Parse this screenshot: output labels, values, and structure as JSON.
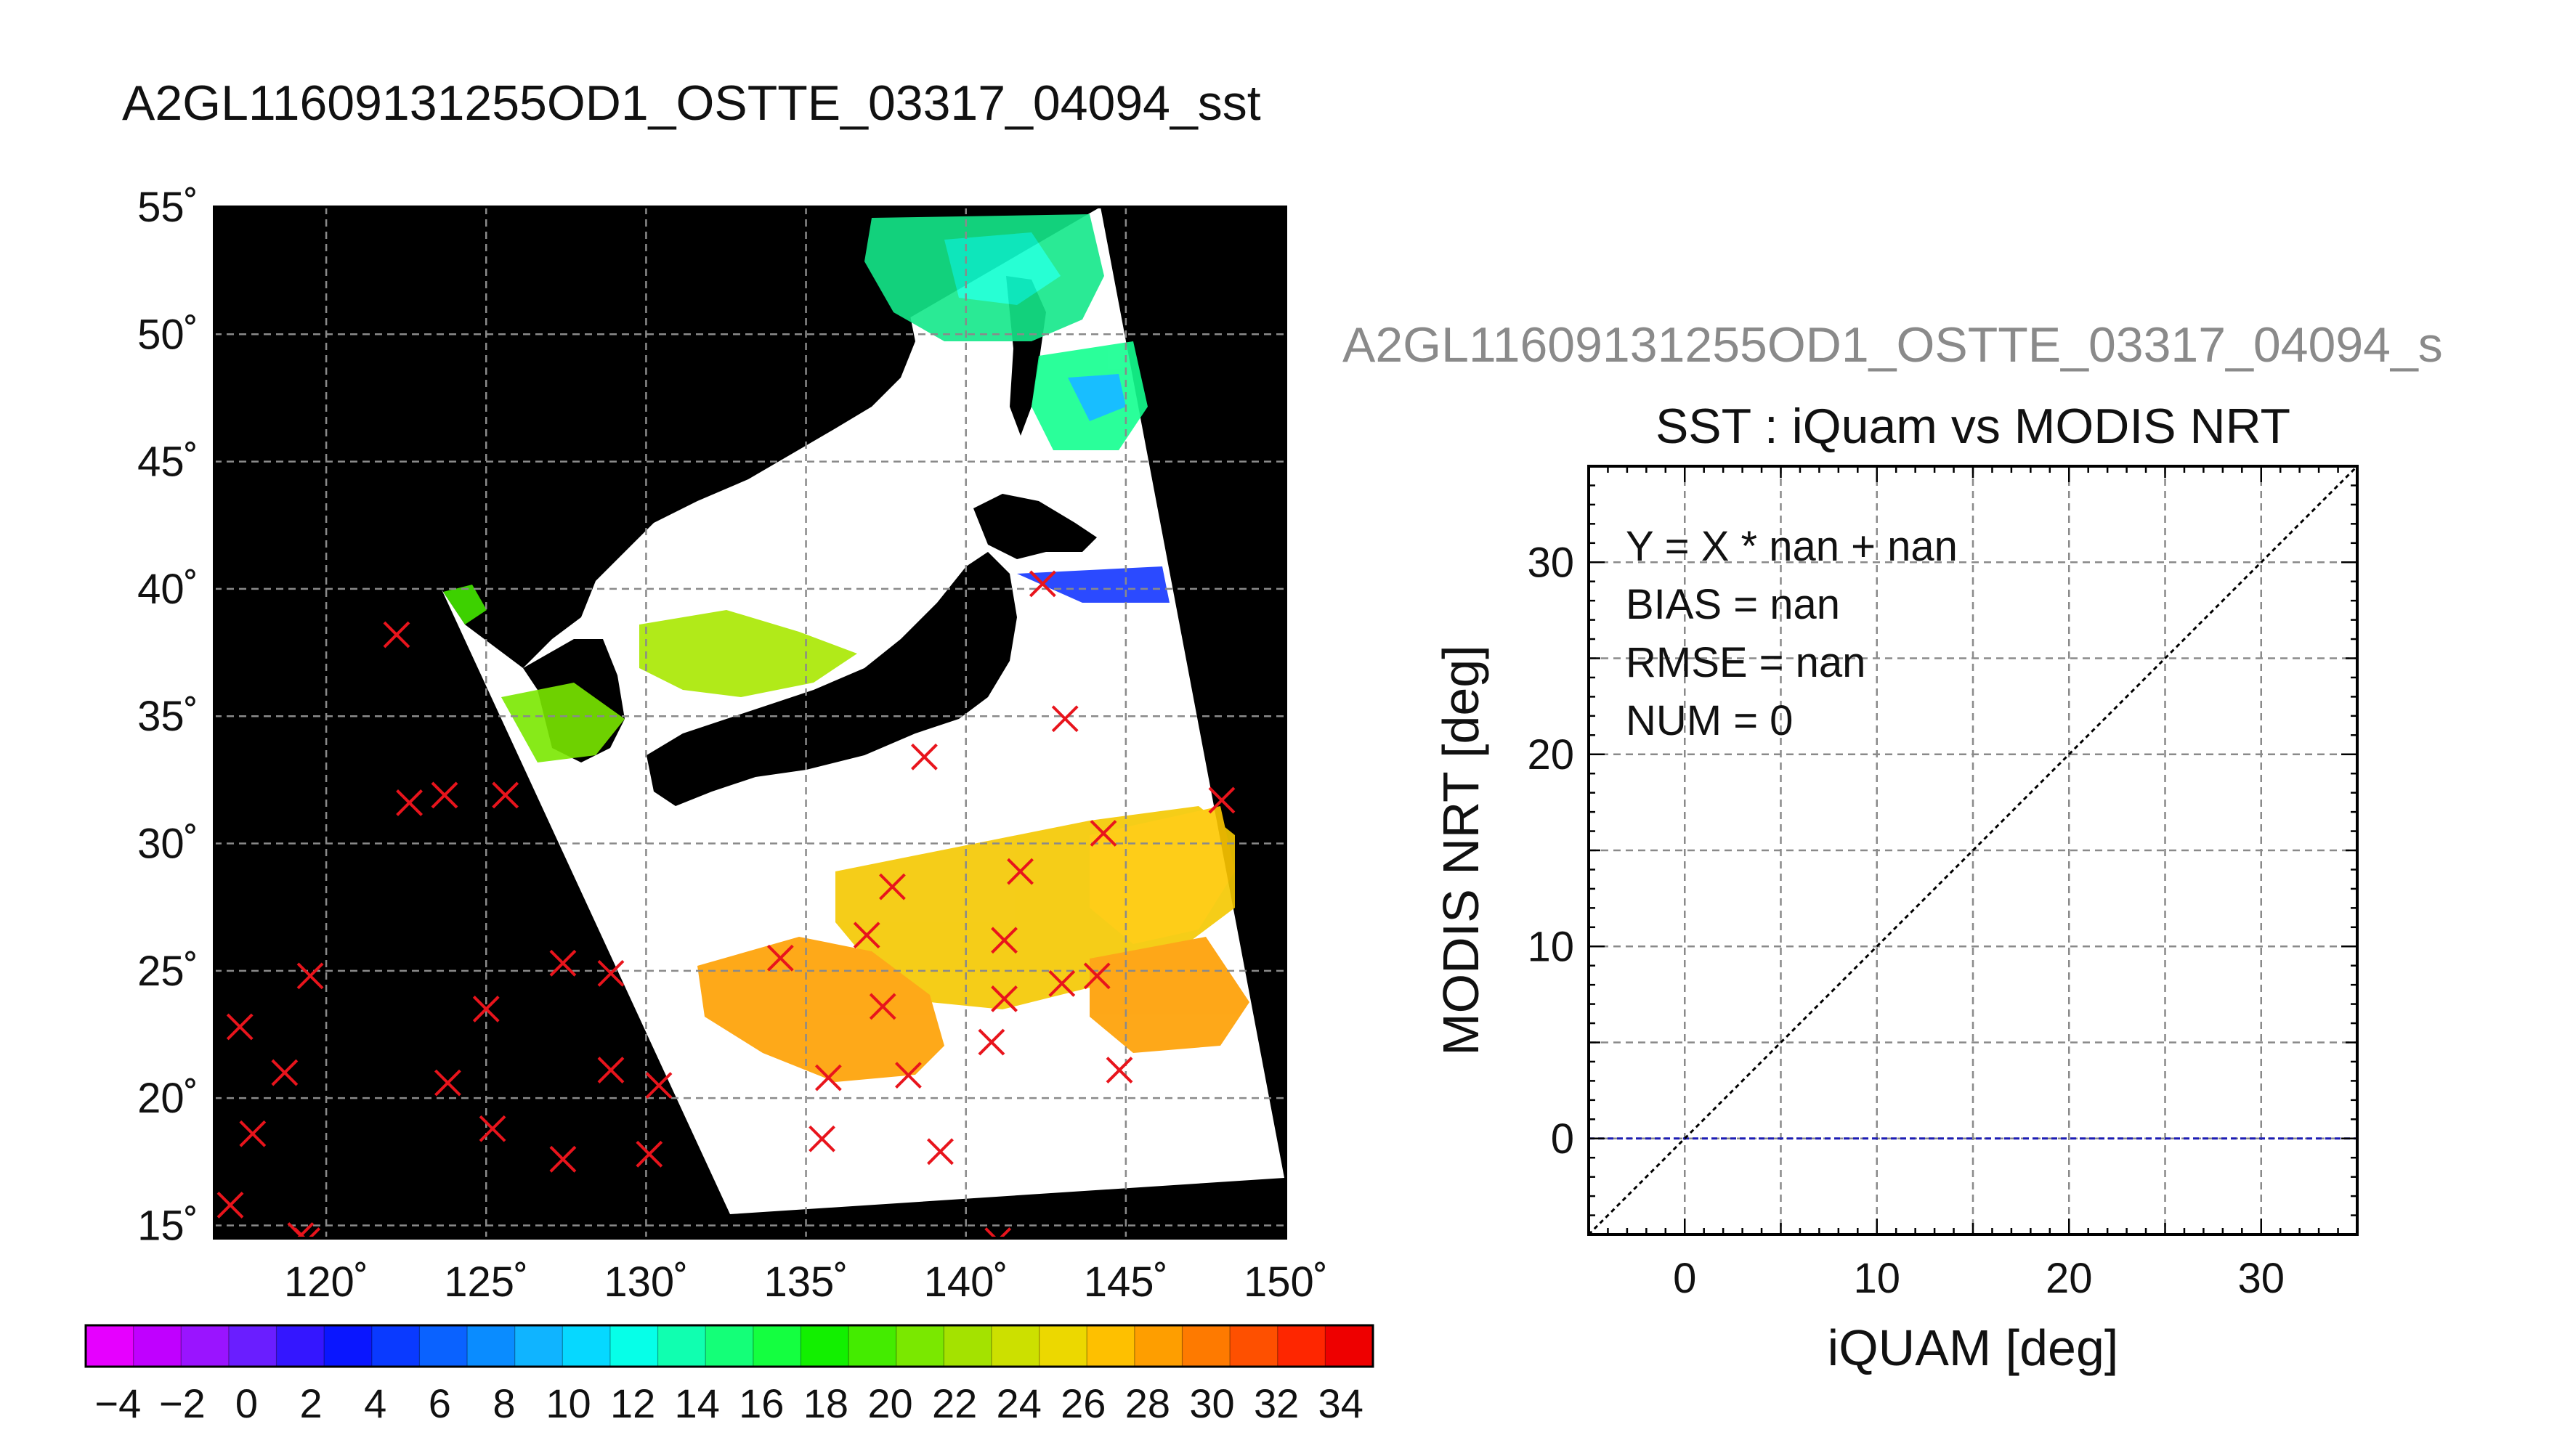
{
  "map_panel": {
    "title": "A2GL11609131255OD1_OSTTE_03317_04094_sst",
    "lat_ticks": [
      "55˚",
      "50˚",
      "45˚",
      "40˚",
      "35˚",
      "30˚",
      "25˚",
      "20˚",
      "15˚"
    ],
    "lon_ticks": [
      "120˚",
      "125˚",
      "130˚",
      "135˚",
      "140˚",
      "145˚",
      "150˚"
    ],
    "lat_range": [
      14.5,
      55
    ],
    "lon_range": [
      116.5,
      150
    ],
    "grid": true,
    "background_color": "#000000",
    "marker_color": "#e8141c",
    "markers": [
      {
        "lon": 117.0,
        "lat": 15.8
      },
      {
        "lon": 117.3,
        "lat": 22.8
      },
      {
        "lon": 117.7,
        "lat": 18.6
      },
      {
        "lon": 118.7,
        "lat": 21.0
      },
      {
        "lon": 119.2,
        "lat": 14.6
      },
      {
        "lon": 119.4,
        "lat": 14.4
      },
      {
        "lon": 119.5,
        "lat": 24.8
      },
      {
        "lon": 122.2,
        "lat": 38.2
      },
      {
        "lon": 122.6,
        "lat": 31.6
      },
      {
        "lon": 123.7,
        "lat": 31.9
      },
      {
        "lon": 123.8,
        "lat": 20.6
      },
      {
        "lon": 125.0,
        "lat": 23.5
      },
      {
        "lon": 125.2,
        "lat": 18.8
      },
      {
        "lon": 125.6,
        "lat": 31.9
      },
      {
        "lon": 127.4,
        "lat": 25.3
      },
      {
        "lon": 127.4,
        "lat": 17.6
      },
      {
        "lon": 128.9,
        "lat": 24.9
      },
      {
        "lon": 128.9,
        "lat": 21.1
      },
      {
        "lon": 130.1,
        "lat": 17.8
      },
      {
        "lon": 130.4,
        "lat": 20.5
      },
      {
        "lon": 134.2,
        "lat": 25.5
      },
      {
        "lon": 135.5,
        "lat": 18.4
      },
      {
        "lon": 135.7,
        "lat": 20.8
      },
      {
        "lon": 136.9,
        "lat": 26.4
      },
      {
        "lon": 137.4,
        "lat": 23.6
      },
      {
        "lon": 137.7,
        "lat": 28.3
      },
      {
        "lon": 138.2,
        "lat": 20.9
      },
      {
        "lon": 138.7,
        "lat": 33.4
      },
      {
        "lon": 139.2,
        "lat": 17.9
      },
      {
        "lon": 140.8,
        "lat": 22.2
      },
      {
        "lon": 141.0,
        "lat": 14.4
      },
      {
        "lon": 141.2,
        "lat": 26.2
      },
      {
        "lon": 141.2,
        "lat": 23.9
      },
      {
        "lon": 141.7,
        "lat": 28.9
      },
      {
        "lon": 142.4,
        "lat": 40.2
      },
      {
        "lon": 143.1,
        "lat": 34.9
      },
      {
        "lon": 143.0,
        "lat": 24.5
      },
      {
        "lon": 144.1,
        "lat": 24.8
      },
      {
        "lon": 144.3,
        "lat": 30.4
      },
      {
        "lon": 144.8,
        "lat": 21.1
      },
      {
        "lon": 148.0,
        "lat": 31.7
      }
    ]
  },
  "colorbar": {
    "tick_labels": [
      "−4",
      "−2",
      "0",
      "2",
      "4",
      "6",
      "8",
      "10",
      "12",
      "14",
      "16",
      "18",
      "20",
      "22",
      "24",
      "26",
      "28",
      "30",
      "32",
      "34"
    ],
    "range": [
      -5,
      35
    ],
    "colors": [
      "#e600ff",
      "#c000ff",
      "#9a14ff",
      "#6a1eff",
      "#3416ff",
      "#0a16ff",
      "#0a3aff",
      "#0a62ff",
      "#0a8cff",
      "#10b4ff",
      "#06d8ff",
      "#06ffe8",
      "#10ffb0",
      "#14ff78",
      "#14ff40",
      "#12f000",
      "#44ec00",
      "#7ae800",
      "#a4e200",
      "#cce000",
      "#ecd800",
      "#fec000",
      "#fe9e00",
      "#fe7a00",
      "#fe5000",
      "#fe2600",
      "#ee0000"
    ]
  },
  "scatter_panel": {
    "title": "A2GL11609131255OD1_OSTTE_03317_04094_s",
    "chart_title": "SST : iQuam vs MODIS NRT",
    "xlabel": "iQUAM [deg]",
    "ylabel": "MODIS NRT [deg]",
    "x_ticks": [
      "0",
      "10",
      "20",
      "30"
    ],
    "y_ticks": [
      "0",
      "10",
      "20",
      "30"
    ],
    "stats": [
      "Y = X * nan + nan",
      "BIAS = nan",
      "RMSE = nan",
      "NUM = 0"
    ],
    "reference_line_color": "#1c1cb4"
  },
  "chart_data": [
    {
      "type": "scatter",
      "title": "A2GL11609131255OD1_OSTTE_03317_04094_sst",
      "xlabel": "",
      "ylabel": "",
      "xlim": [
        116.5,
        150
      ],
      "ylim": [
        14.5,
        55
      ],
      "grid": true,
      "x_tick_labels": [
        "120˚",
        "125˚",
        "130˚",
        "135˚",
        "140˚",
        "145˚",
        "150˚"
      ],
      "y_tick_labels": [
        "55˚",
        "50˚",
        "45˚",
        "40˚",
        "35˚",
        "30˚",
        "25˚",
        "20˚",
        "15˚"
      ],
      "colorbar_range": [
        -5,
        35
      ]
    },
    {
      "type": "scatter",
      "title": "SST : iQuam vs MODIS NRT",
      "xlabel": "iQUAM [deg]",
      "ylabel": "MODIS NRT [deg]",
      "xlim": [
        -5,
        35
      ],
      "ylim": [
        -5,
        35
      ],
      "grid": true,
      "series": [],
      "reference_lines": [
        {
          "kind": "one-to-one",
          "slope": 1,
          "intercept": 0
        },
        {
          "kind": "zero",
          "y": 0
        }
      ],
      "annotations": [
        "Y = X * nan + nan",
        "BIAS = nan",
        "RMSE = nan",
        "NUM = 0"
      ]
    }
  ]
}
